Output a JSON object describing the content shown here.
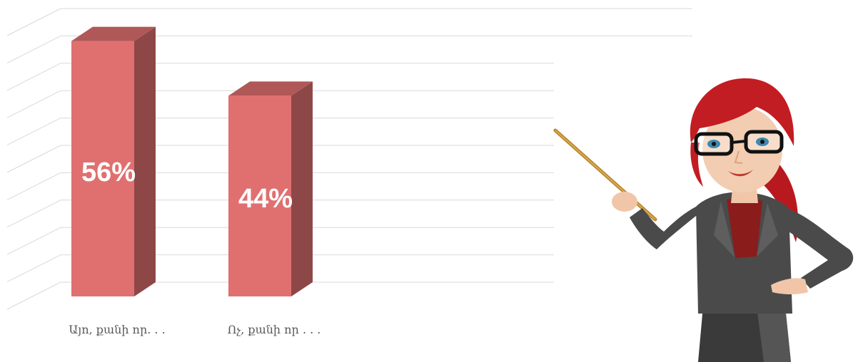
{
  "chart_data": {
    "type": "bar",
    "categories": [
      "Այո, քանի որ. . .",
      "Ոչ, քանի որ . . ."
    ],
    "values": [
      56,
      44
    ],
    "data_labels": [
      "56%",
      "44%"
    ],
    "ylim": [
      0,
      60
    ],
    "grid": true,
    "style": "3d-column",
    "colors": {
      "bar_front": "#e07070",
      "bar_side": "#8e4747",
      "bar_top": "#b05858",
      "grid": "#d9d9d9"
    }
  },
  "illustration": {
    "icon": "teacher-with-pointer-icon"
  }
}
